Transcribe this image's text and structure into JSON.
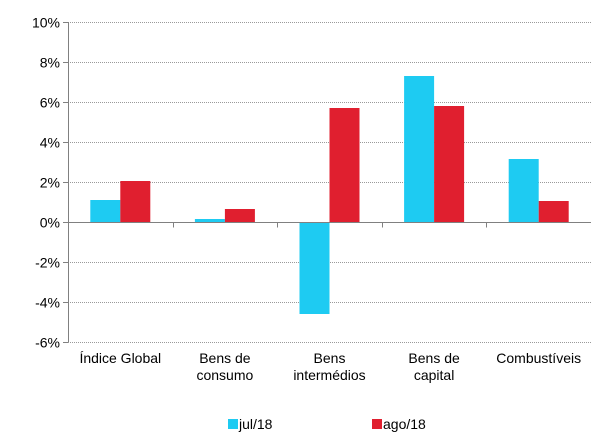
{
  "chart_data": {
    "type": "bar",
    "categories": [
      [
        "Índice Global"
      ],
      [
        "Bens de",
        "consumo"
      ],
      [
        "Bens",
        "intermédios"
      ],
      [
        "Bens de",
        "capital"
      ],
      [
        "Combustíveis"
      ]
    ],
    "series": [
      {
        "name": "jul/18",
        "color": "#1ECBF2",
        "values": [
          1.1,
          0.15,
          -4.6,
          7.3,
          3.15
        ]
      },
      {
        "name": "ago/18",
        "color": "#E01F2F",
        "values": [
          2.05,
          0.65,
          5.7,
          5.8,
          1.05
        ]
      }
    ],
    "ylim": [
      -6,
      10
    ],
    "ytick_step": 2,
    "ytick_suffix": "%",
    "grid": true,
    "legend_position": "bottom"
  }
}
